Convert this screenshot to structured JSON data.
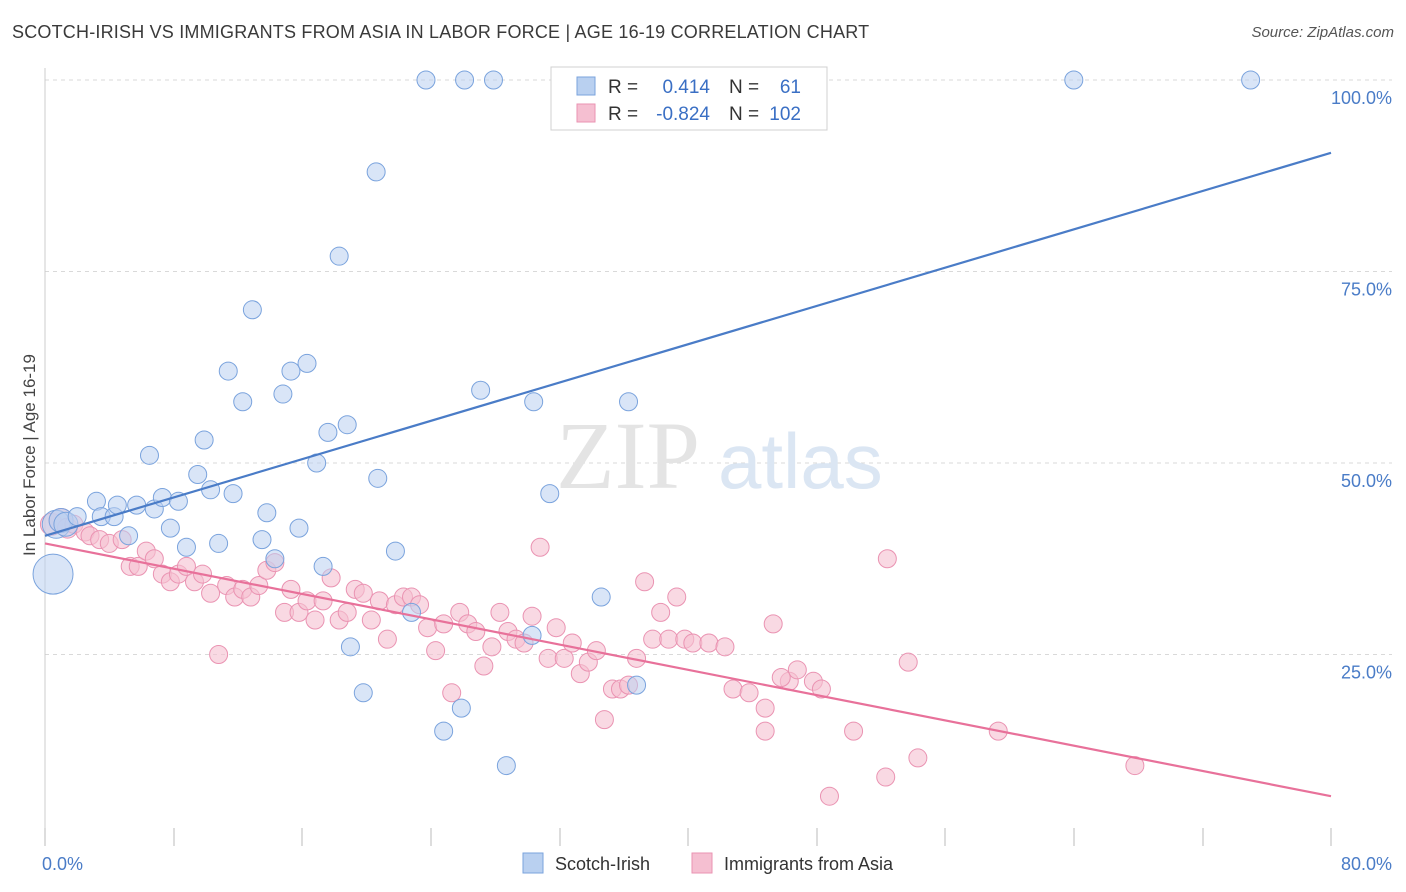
{
  "title": "SCOTCH-IRISH VS IMMIGRANTS FROM ASIA IN LABOR FORCE | AGE 16-19 CORRELATION CHART",
  "source": "Source: ZipAtlas.com",
  "watermark": {
    "zip": "ZIP",
    "atlas": "atlas"
  },
  "colors": {
    "blue": "#4a7cc7",
    "blue_fill": "#b9d0f0",
    "blue_stroke": "#7aa3dd",
    "pink": "#e8719a",
    "pink_fill": "#f5bfd1",
    "pink_stroke": "#ea93b2",
    "grid": "#d9d9d9"
  },
  "legend": {
    "rows": [
      {
        "r_label": "R =",
        "r_value": "0.414",
        "n_label": "N =",
        "n_value": "61"
      },
      {
        "r_label": "R =",
        "r_value": "-0.824",
        "n_label": "N =",
        "n_value": "102"
      }
    ]
  },
  "bottom_legend": [
    "Scotch-Irish",
    "Immigrants from Asia"
  ],
  "chart_data": {
    "type": "scatter",
    "title": "SCOTCH-IRISH VS IMMIGRANTS FROM ASIA IN LABOR FORCE | AGE 16-19 CORRELATION CHART",
    "xlabel": "",
    "ylabel": "In Labor Force | Age 16-19",
    "xlim": [
      0,
      80
    ],
    "ylim": [
      0,
      102
    ],
    "x_tick_labels": [
      "0.0%",
      "80.0%"
    ],
    "y_ticks": [
      25,
      50,
      75,
      100
    ],
    "y_tick_labels": [
      "25.0%",
      "50.0%",
      "75.0%",
      "100.0%"
    ],
    "grid": true,
    "legend_position": "top-center",
    "series": [
      {
        "name": "Scotch-Irish",
        "color": "#4a7cc7",
        "R": 0.414,
        "N": 61,
        "trend": {
          "x": [
            0,
            80
          ],
          "y": [
            40.5,
            90.5
          ]
        },
        "points": [
          [
            0.5,
            35.5,
            20
          ],
          [
            0.7,
            42,
            14
          ],
          [
            1.0,
            42.5,
            12
          ],
          [
            1.3,
            42,
            12
          ],
          [
            2.0,
            43,
            9
          ],
          [
            3.2,
            45,
            9
          ],
          [
            3.5,
            43,
            9
          ],
          [
            4.3,
            43,
            9
          ],
          [
            4.5,
            44.5,
            9
          ],
          [
            5.2,
            40.5,
            9
          ],
          [
            5.7,
            44.5,
            9
          ],
          [
            6.5,
            51,
            9
          ],
          [
            6.8,
            44,
            9
          ],
          [
            7.3,
            45.5,
            9
          ],
          [
            7.8,
            41.5,
            9
          ],
          [
            8.3,
            45,
            9
          ],
          [
            8.8,
            39,
            9
          ],
          [
            9.5,
            48.5,
            9
          ],
          [
            9.9,
            53,
            9
          ],
          [
            10.3,
            46.5,
            9
          ],
          [
            10.8,
            39.5,
            9
          ],
          [
            11.4,
            62,
            9
          ],
          [
            11.7,
            46,
            9
          ],
          [
            12.3,
            58,
            9
          ],
          [
            12.9,
            70,
            9
          ],
          [
            13.5,
            40,
            9
          ],
          [
            13.8,
            43.5,
            9
          ],
          [
            14.3,
            37.5,
            9
          ],
          [
            14.8,
            59,
            9
          ],
          [
            15.3,
            62,
            9
          ],
          [
            15.8,
            41.5,
            9
          ],
          [
            16.3,
            63,
            9
          ],
          [
            16.9,
            50,
            9
          ],
          [
            17.3,
            36.5,
            9
          ],
          [
            17.6,
            54,
            9
          ],
          [
            18.3,
            77,
            9
          ],
          [
            18.8,
            55,
            9
          ],
          [
            19.0,
            26,
            9
          ],
          [
            19.8,
            20,
            9
          ],
          [
            20.6,
            88,
            9
          ],
          [
            20.7,
            48,
            9
          ],
          [
            21.8,
            38.5,
            9
          ],
          [
            22.8,
            30.5,
            9
          ],
          [
            23.7,
            100,
            9
          ],
          [
            24.8,
            15,
            9
          ],
          [
            25.9,
            18,
            9
          ],
          [
            26.1,
            100,
            9
          ],
          [
            27.1,
            59.5,
            9
          ],
          [
            27.9,
            100,
            9
          ],
          [
            28.7,
            10.5,
            9
          ],
          [
            30.4,
            58,
            9
          ],
          [
            30.3,
            27.5,
            9
          ],
          [
            31.4,
            46,
            9
          ],
          [
            32.2,
            100,
            9
          ],
          [
            34.6,
            32.5,
            9
          ],
          [
            36.0,
            100,
            9
          ],
          [
            36.3,
            58,
            9
          ],
          [
            36.8,
            21,
            9
          ],
          [
            64.0,
            100,
            9
          ],
          [
            75.0,
            100,
            9
          ]
        ]
      },
      {
        "name": "Immigrants from Asia",
        "color": "#e8719a",
        "R": -0.824,
        "N": 102,
        "trend": {
          "x": [
            0,
            80
          ],
          "y": [
            39.5,
            6.5
          ]
        },
        "points": [
          [
            0.4,
            42,
            11
          ],
          [
            1.0,
            42.5,
            12
          ],
          [
            1.4,
            41.5,
            10
          ],
          [
            1.8,
            42,
            9
          ],
          [
            2.5,
            41,
            9
          ],
          [
            2.8,
            40.5,
            9
          ],
          [
            3.4,
            40,
            9
          ],
          [
            4.0,
            39.5,
            9
          ],
          [
            4.8,
            40,
            9
          ],
          [
            5.3,
            36.5,
            9
          ],
          [
            5.8,
            36.5,
            9
          ],
          [
            6.3,
            38.5,
            9
          ],
          [
            6.8,
            37.5,
            9
          ],
          [
            7.3,
            35.5,
            9
          ],
          [
            7.8,
            34.5,
            9
          ],
          [
            8.3,
            35.5,
            9
          ],
          [
            8.8,
            36.5,
            9
          ],
          [
            9.3,
            34.5,
            9
          ],
          [
            9.8,
            35.5,
            9
          ],
          [
            10.3,
            33,
            9
          ],
          [
            10.8,
            25,
            9
          ],
          [
            11.3,
            34,
            9
          ],
          [
            11.8,
            32.5,
            9
          ],
          [
            12.3,
            33.5,
            9
          ],
          [
            12.8,
            32.5,
            9
          ],
          [
            13.3,
            34,
            9
          ],
          [
            13.8,
            36,
            9
          ],
          [
            14.3,
            37,
            9
          ],
          [
            14.9,
            30.5,
            9
          ],
          [
            15.3,
            33.5,
            9
          ],
          [
            15.8,
            30.5,
            9
          ],
          [
            16.3,
            32,
            9
          ],
          [
            16.8,
            29.5,
            9
          ],
          [
            17.3,
            32,
            9
          ],
          [
            17.8,
            35,
            9
          ],
          [
            18.3,
            29.5,
            9
          ],
          [
            18.8,
            30.5,
            9
          ],
          [
            19.3,
            33.5,
            9
          ],
          [
            19.8,
            33,
            9
          ],
          [
            20.3,
            29.5,
            9
          ],
          [
            20.8,
            32,
            9
          ],
          [
            21.3,
            27,
            9
          ],
          [
            21.8,
            31.5,
            9
          ],
          [
            22.3,
            32.5,
            9
          ],
          [
            22.8,
            32.5,
            9
          ],
          [
            23.3,
            31.5,
            9
          ],
          [
            23.8,
            28.5,
            9
          ],
          [
            24.3,
            25.5,
            9
          ],
          [
            24.8,
            29,
            9
          ],
          [
            25.3,
            20,
            9
          ],
          [
            25.8,
            30.5,
            9
          ],
          [
            26.3,
            29,
            9
          ],
          [
            26.8,
            28,
            9
          ],
          [
            27.3,
            23.5,
            9
          ],
          [
            27.8,
            26,
            9
          ],
          [
            28.3,
            30.5,
            9
          ],
          [
            28.8,
            28,
            9
          ],
          [
            29.3,
            27,
            9
          ],
          [
            29.8,
            26.5,
            9
          ],
          [
            30.3,
            30,
            9
          ],
          [
            30.8,
            39,
            9
          ],
          [
            31.3,
            24.5,
            9
          ],
          [
            31.8,
            28.5,
            9
          ],
          [
            32.3,
            24.5,
            9
          ],
          [
            32.8,
            26.5,
            9
          ],
          [
            33.3,
            22.5,
            9
          ],
          [
            33.8,
            24,
            9
          ],
          [
            34.3,
            25.5,
            9
          ],
          [
            34.8,
            16.5,
            9
          ],
          [
            35.3,
            20.5,
            9
          ],
          [
            35.8,
            20.5,
            9
          ],
          [
            36.3,
            21,
            9
          ],
          [
            36.8,
            24.5,
            9
          ],
          [
            37.3,
            34.5,
            9
          ],
          [
            37.8,
            27,
            9
          ],
          [
            38.3,
            30.5,
            9
          ],
          [
            38.8,
            27,
            9
          ],
          [
            39.3,
            32.5,
            9
          ],
          [
            39.8,
            27,
            9
          ],
          [
            40.3,
            26.5,
            9
          ],
          [
            41.3,
            26.5,
            9
          ],
          [
            42.3,
            26,
            9
          ],
          [
            42.8,
            20.5,
            9
          ],
          [
            43.8,
            20,
            9
          ],
          [
            44.8,
            15,
            9
          ],
          [
            44.8,
            18,
            9
          ],
          [
            45.3,
            29,
            9
          ],
          [
            46.3,
            21.5,
            9
          ],
          [
            46.8,
            23,
            9
          ],
          [
            47.8,
            21.5,
            9
          ],
          [
            48.3,
            20.5,
            9
          ],
          [
            48.8,
            6.5,
            9
          ],
          [
            50.3,
            15,
            9
          ],
          [
            52.3,
            9,
            9
          ],
          [
            52.4,
            37.5,
            9
          ],
          [
            53.7,
            24,
            9
          ],
          [
            54.3,
            11.5,
            9
          ],
          [
            59.3,
            15,
            9
          ],
          [
            67.8,
            10.5,
            9
          ],
          [
            45.8,
            22,
            9
          ]
        ]
      }
    ]
  }
}
